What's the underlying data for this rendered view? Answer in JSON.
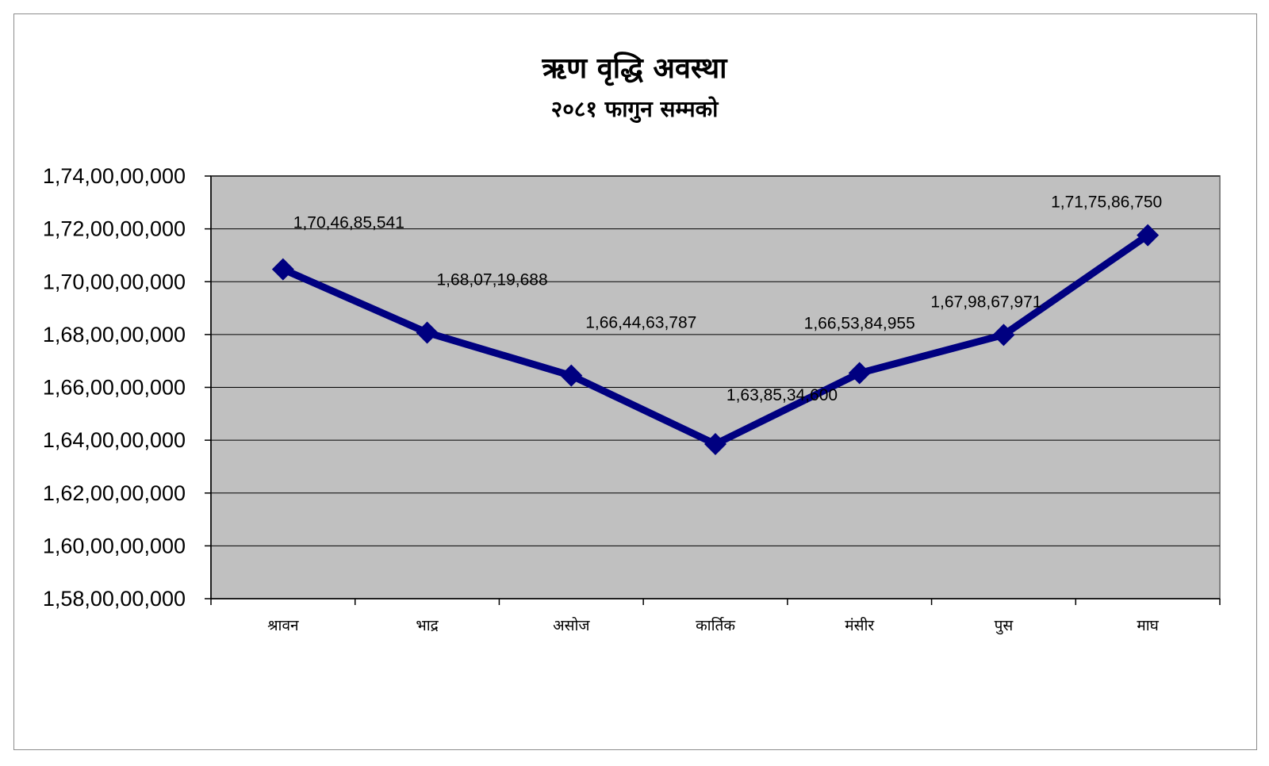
{
  "chart_data": {
    "type": "line",
    "title": "ऋण वृद्धि अवस्था",
    "subtitle": "२०८१ फागुन सम्मको",
    "categories": [
      "श्रावन",
      "भाद्र",
      "असोज",
      "कार्तिक",
      "मंसीर",
      "पुस",
      "माघ"
    ],
    "values": [
      17046855410,
      16807196880,
      16644637870,
      16385346000,
      16653849550,
      16798679710,
      17175867500
    ],
    "data_labels": [
      "1,70,46,85,541",
      "1,68,07,19,688",
      "1,66,44,63,787",
      "1,63,85,34,600",
      "1,66,53,84,955",
      "1,67,98,67,971",
      "1,71,75,86,750"
    ],
    "ylim": [
      15800000000,
      17400000000
    ],
    "yticks": [
      15800000000,
      16000000000,
      16200000000,
      16400000000,
      16600000000,
      16800000000,
      17000000000,
      17200000000,
      17400000000
    ],
    "ytick_labels": [
      "1,58,00,00,000",
      "1,60,00,00,000",
      "1,62,00,00,000",
      "1,64,00,00,000",
      "1,66,00,00,000",
      "1,68,00,00,000",
      "1,70,00,00,000",
      "1,72,00,00,000",
      "1,74,00,00,000"
    ],
    "grid": true,
    "legend": "none",
    "colors": {
      "line": "#000080",
      "plot_background": "#c0c0c0",
      "gridline": "#000000"
    }
  }
}
